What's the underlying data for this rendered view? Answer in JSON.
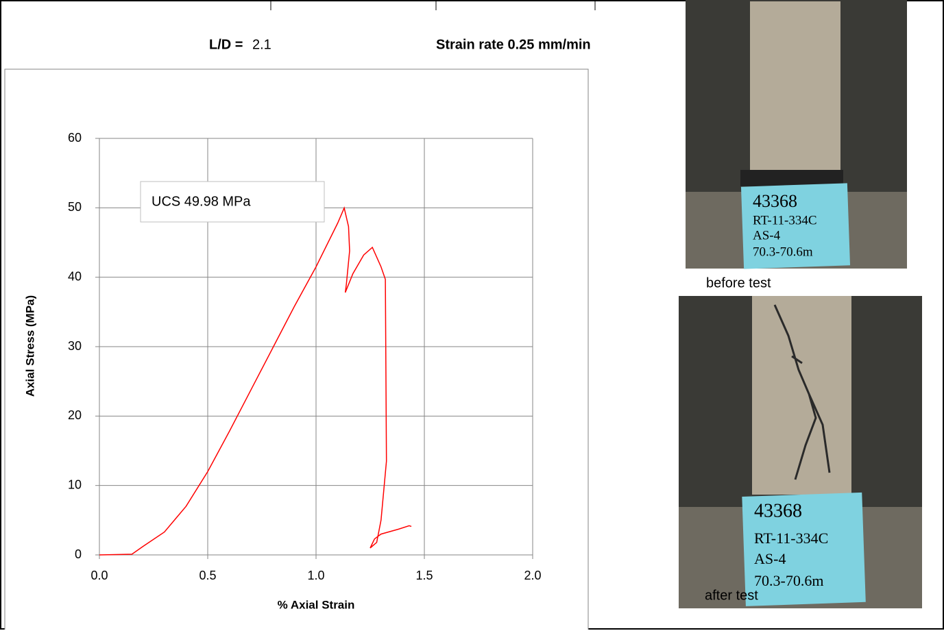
{
  "header": {
    "ld_label": "L/D =",
    "ld_value": "2.1",
    "strain_rate": "Strain rate 0.25 mm/min"
  },
  "photos": [
    {
      "caption": "before test",
      "label_lines": [
        "43368",
        "RT-11-334C",
        "AS-4",
        "70.3-70.6m"
      ]
    },
    {
      "caption": "after test",
      "label_lines": [
        "43368",
        "RT-11-334C",
        "AS-4",
        "70.3-70.6m"
      ]
    }
  ],
  "chart_data": {
    "type": "line",
    "xlabel": "% Axial Strain",
    "ylabel": "Axial Stress (MPa)",
    "annotation": "UCS 49.98 MPa",
    "x": [
      0,
      0.15,
      0.2,
      0.3,
      0.4,
      0.5,
      0.6,
      0.7,
      0.8,
      0.9,
      1.0,
      1.1,
      1.13,
      1.15,
      1.155,
      1.14,
      1.135,
      1.17,
      1.22,
      1.26,
      1.3,
      1.32,
      1.325,
      1.3,
      1.28,
      1.25,
      1.27,
      1.3,
      1.38,
      1.43,
      1.44
    ],
    "series": [
      {
        "color": "#ff0000",
        "values": [
          0,
          0.1,
          1.2,
          3.3,
          7,
          12,
          17.8,
          23.8,
          29.8,
          35.8,
          41.5,
          47.8,
          49.98,
          47.3,
          43.8,
          39,
          37.8,
          40.5,
          43.2,
          44.3,
          41.5,
          39.7,
          13.5,
          5,
          1.8,
          1.0,
          2.3,
          3,
          3.7,
          4.2,
          4.1
        ]
      }
    ],
    "xlim": [
      0,
      2
    ],
    "ylim": [
      0,
      60
    ],
    "xticks": [
      {
        "value": 0,
        "label": "0.0"
      },
      0.5,
      {
        "value": 1,
        "label": "1.0"
      },
      1.5,
      {
        "value": 2,
        "label": "2.0"
      }
    ],
    "yticks": [
      0,
      10,
      20,
      30,
      40,
      50,
      60
    ],
    "grid": true
  }
}
